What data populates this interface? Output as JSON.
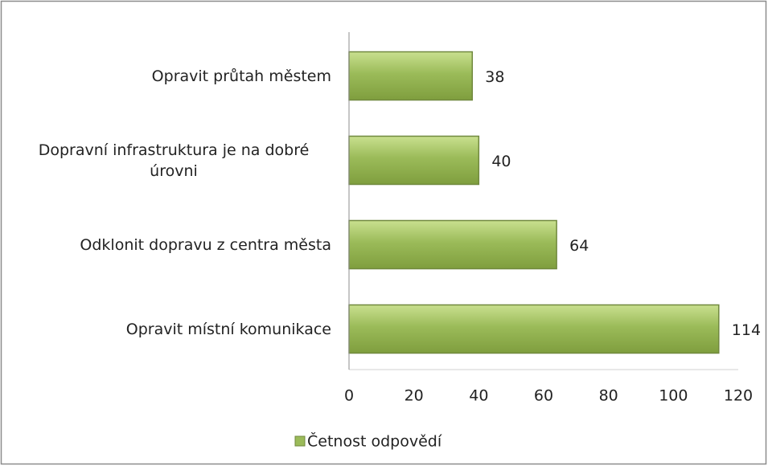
{
  "chart_data": {
    "type": "bar",
    "orientation": "horizontal",
    "categories": [
      "Opravit průtah městem",
      "Dopravní infrastruktura je na dobré úrovni",
      "Odklonit dopravu z centra města",
      "Opravit místní komunikace"
    ],
    "series": [
      {
        "name": "Četnost odpovědí",
        "color": "#9bbb59",
        "values": [
          38,
          40,
          64,
          114
        ]
      }
    ],
    "xlim": [
      0,
      120
    ],
    "xticks": [
      0,
      20,
      40,
      60,
      80,
      100,
      120
    ],
    "grid": false,
    "legend": "bottom"
  }
}
